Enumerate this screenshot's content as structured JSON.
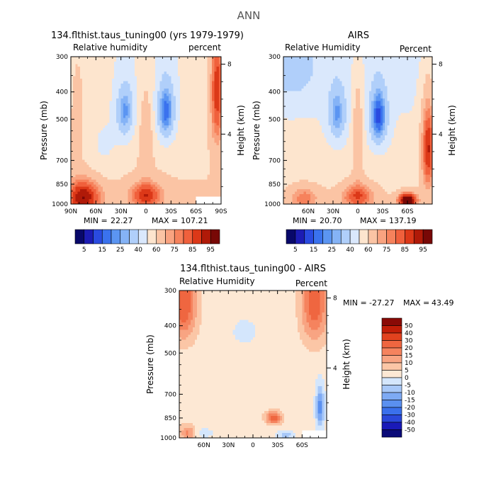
{
  "figure_title": "ANN",
  "colors": {
    "frame": "#000000",
    "missing": "#ffffff"
  },
  "chart_data": [
    {
      "id": "model",
      "type": "heatmap",
      "title": "134.flthist.taus_tuning00 (yrs 1979-1979)",
      "variable_label": "Relative humidity",
      "units_label": "percent",
      "ylabel": "Pressure (mb)",
      "y2label": "Height (km)",
      "pressure_ticks": [
        "300",
        "400",
        "500",
        "700",
        "850",
        "1000"
      ],
      "pressure_values": [
        300,
        400,
        500,
        700,
        850,
        1000
      ],
      "height_ticks": [
        "8",
        "4"
      ],
      "height_values": [
        8,
        4
      ],
      "lat_ticks": [
        "90N",
        "60N",
        "30N",
        "0",
        "30S",
        "60S",
        "90S"
      ],
      "lat_values": [
        90,
        60,
        30,
        0,
        -30,
        -60,
        -90
      ],
      "xlim": [
        90,
        -90
      ],
      "ylim": [
        300,
        1000
      ],
      "min_label": "MIN =",
      "min_value": "22.27",
      "max_label": "MAX =",
      "max_value": "107.21",
      "field": {
        "kind": "rh",
        "base": 57,
        "features": [
          {
            "lat": 25,
            "p": 470,
            "slat": 11,
            "sp": 110,
            "amp": -30
          },
          {
            "lat": -24,
            "p": 470,
            "slat": 11,
            "sp": 120,
            "amp": -37
          },
          {
            "lat": 0,
            "p": 560,
            "slat": 8,
            "sp": 220,
            "amp": 14
          },
          {
            "lat": 0,
            "p": 930,
            "slat": 20,
            "sp": 110,
            "amp": 28
          },
          {
            "lat": 75,
            "p": 940,
            "slat": 22,
            "sp": 140,
            "amp": 33
          },
          {
            "lat": -85,
            "p": 380,
            "slat": 9,
            "sp": 240,
            "amp": 36
          },
          {
            "lat": 82,
            "p": 420,
            "slat": 10,
            "sp": 280,
            "amp": 10
          },
          {
            "lat": 50,
            "p": 640,
            "slat": 20,
            "sp": 150,
            "amp": -8
          }
        ],
        "missing_box": {
          "lat0": -60,
          "lat1": -90,
          "p0": 945,
          "p1": 1000
        }
      },
      "legend": {
        "title": "",
        "labels": [
          "5",
          "15",
          "25",
          "40",
          "60",
          "75",
          "85",
          "95"
        ],
        "levels": [
          5,
          10,
          15,
          20,
          25,
          30,
          40,
          50,
          60,
          70,
          75,
          80,
          85,
          90,
          95
        ],
        "colors": [
          "#08086a",
          "#1c1cb4",
          "#2a4be0",
          "#3a72ee",
          "#5b95f2",
          "#85b3f6",
          "#b0cffa",
          "#dae8fc",
          "#fde5ce",
          "#fbc4a4",
          "#f9a380",
          "#f6825c",
          "#f0603c",
          "#dc3818",
          "#b01a08",
          "#780806"
        ]
      }
    },
    {
      "id": "obs",
      "type": "heatmap",
      "title": "AIRS",
      "variable_label": "Relative Humidity",
      "units_label": "Percent",
      "ylabel": "Pressure (mb)",
      "y2label": "Height (km)",
      "pressure_ticks": [
        "300",
        "400",
        "500",
        "700",
        "850",
        "1000"
      ],
      "pressure_values": [
        300,
        400,
        500,
        700,
        850,
        1000
      ],
      "height_ticks": [
        "8",
        "4"
      ],
      "height_values": [
        8,
        4
      ],
      "lat_ticks": [
        "60N",
        "30N",
        "0",
        "30S",
        "60S"
      ],
      "lat_values": [
        60,
        30,
        0,
        -30,
        -60
      ],
      "xlim": [
        90,
        -90
      ],
      "ylim": [
        300,
        1000
      ],
      "min_label": "MIN =",
      "min_value": "20.70",
      "max_label": "MAX =",
      "max_value": "137.19",
      "field": {
        "kind": "rh",
        "base": 53,
        "features": [
          {
            "lat": 25,
            "p": 480,
            "slat": 11,
            "sp": 110,
            "amp": -27
          },
          {
            "lat": -25,
            "p": 490,
            "slat": 11,
            "sp": 120,
            "amp": -38
          },
          {
            "lat": 0,
            "p": 550,
            "slat": 7,
            "sp": 250,
            "amp": 18
          },
          {
            "lat": 0,
            "p": 940,
            "slat": 22,
            "sp": 110,
            "amp": 27
          },
          {
            "lat": -60,
            "p": 970,
            "slat": 12,
            "sp": 60,
            "amp": 48
          },
          {
            "lat": -85,
            "p": 620,
            "slat": 9,
            "sp": 260,
            "amp": 38
          },
          {
            "lat": 80,
            "p": 330,
            "slat": 30,
            "sp": 90,
            "amp": -16
          },
          {
            "lat": 65,
            "p": 950,
            "slat": 20,
            "sp": 100,
            "amp": 20
          }
        ],
        "missing_box": null
      },
      "legend": {
        "title": "",
        "labels": [
          "5",
          "15",
          "25",
          "40",
          "60",
          "75",
          "85",
          "95"
        ],
        "levels": [
          5,
          10,
          15,
          20,
          25,
          30,
          40,
          50,
          60,
          70,
          75,
          80,
          85,
          90,
          95
        ],
        "colors": [
          "#08086a",
          "#1c1cb4",
          "#2a4be0",
          "#3a72ee",
          "#5b95f2",
          "#85b3f6",
          "#b0cffa",
          "#dae8fc",
          "#fde5ce",
          "#fbc4a4",
          "#f9a380",
          "#f6825c",
          "#f0603c",
          "#dc3818",
          "#b01a08",
          "#780806"
        ]
      }
    },
    {
      "id": "diff",
      "type": "heatmap",
      "title": "134.flthist.taus_tuning00 - AIRS",
      "variable_label": "Relative Humidity",
      "units_label": "Percent",
      "ylabel": "Pressure (mb)",
      "y2label": "Height (km)",
      "pressure_ticks": [
        "300",
        "400",
        "500",
        "700",
        "850",
        "1000"
      ],
      "pressure_values": [
        300,
        400,
        500,
        700,
        850,
        1000
      ],
      "height_ticks": [
        "8",
        "4"
      ],
      "height_values": [
        8,
        4
      ],
      "lat_ticks": [
        "60N",
        "30N",
        "0",
        "30S",
        "60S"
      ],
      "lat_values": [
        60,
        30,
        0,
        -30,
        -60
      ],
      "xlim": [
        90,
        -90
      ],
      "ylim": [
        300,
        1000
      ],
      "min_label": "MIN =",
      "min_value": "-27.27",
      "max_label": "MAX =",
      "max_value": "43.49",
      "field": {
        "kind": "diff",
        "base": 2,
        "features": [
          {
            "lat": 85,
            "p": 330,
            "slat": 16,
            "sp": 110,
            "amp": 24
          },
          {
            "lat": -75,
            "p": 330,
            "slat": 16,
            "sp": 120,
            "amp": 22
          },
          {
            "lat": -25,
            "p": 850,
            "slat": 10,
            "sp": 45,
            "amp": 22
          },
          {
            "lat": 80,
            "p": 960,
            "slat": 10,
            "sp": 60,
            "amp": 14
          },
          {
            "lat": -82,
            "p": 780,
            "slat": 5,
            "sp": 130,
            "amp": -20
          },
          {
            "lat": 10,
            "p": 420,
            "slat": 14,
            "sp": 40,
            "amp": -5
          },
          {
            "lat": -40,
            "p": 975,
            "slat": 10,
            "sp": 30,
            "amp": -10
          },
          {
            "lat": 60,
            "p": 960,
            "slat": 10,
            "sp": 35,
            "amp": -6
          }
        ],
        "missing_box": {
          "lat0": -60,
          "lat1": -90,
          "p0": 950,
          "p1": 1000
        }
      },
      "legend": {
        "title": "",
        "labels": [
          "50",
          "40",
          "30",
          "20",
          "15",
          "10",
          "5",
          "0",
          "-5",
          "-10",
          "-15",
          "-20",
          "-30",
          "-40",
          "-50"
        ],
        "levels": [
          -50,
          -40,
          -30,
          -20,
          -15,
          -10,
          -5,
          0,
          5,
          10,
          15,
          20,
          30,
          40,
          50
        ],
        "colors": [
          "#0a0a78",
          "#1a1ab8",
          "#2a48da",
          "#3a70ec",
          "#5a90f0",
          "#7eaaf4",
          "#a8c8f8",
          "#d4e6fc",
          "#fde8d4",
          "#fbc6a6",
          "#f8a482",
          "#f5835e",
          "#ef6640",
          "#e2421e",
          "#c21e08",
          "#8a0a06"
        ]
      }
    }
  ]
}
